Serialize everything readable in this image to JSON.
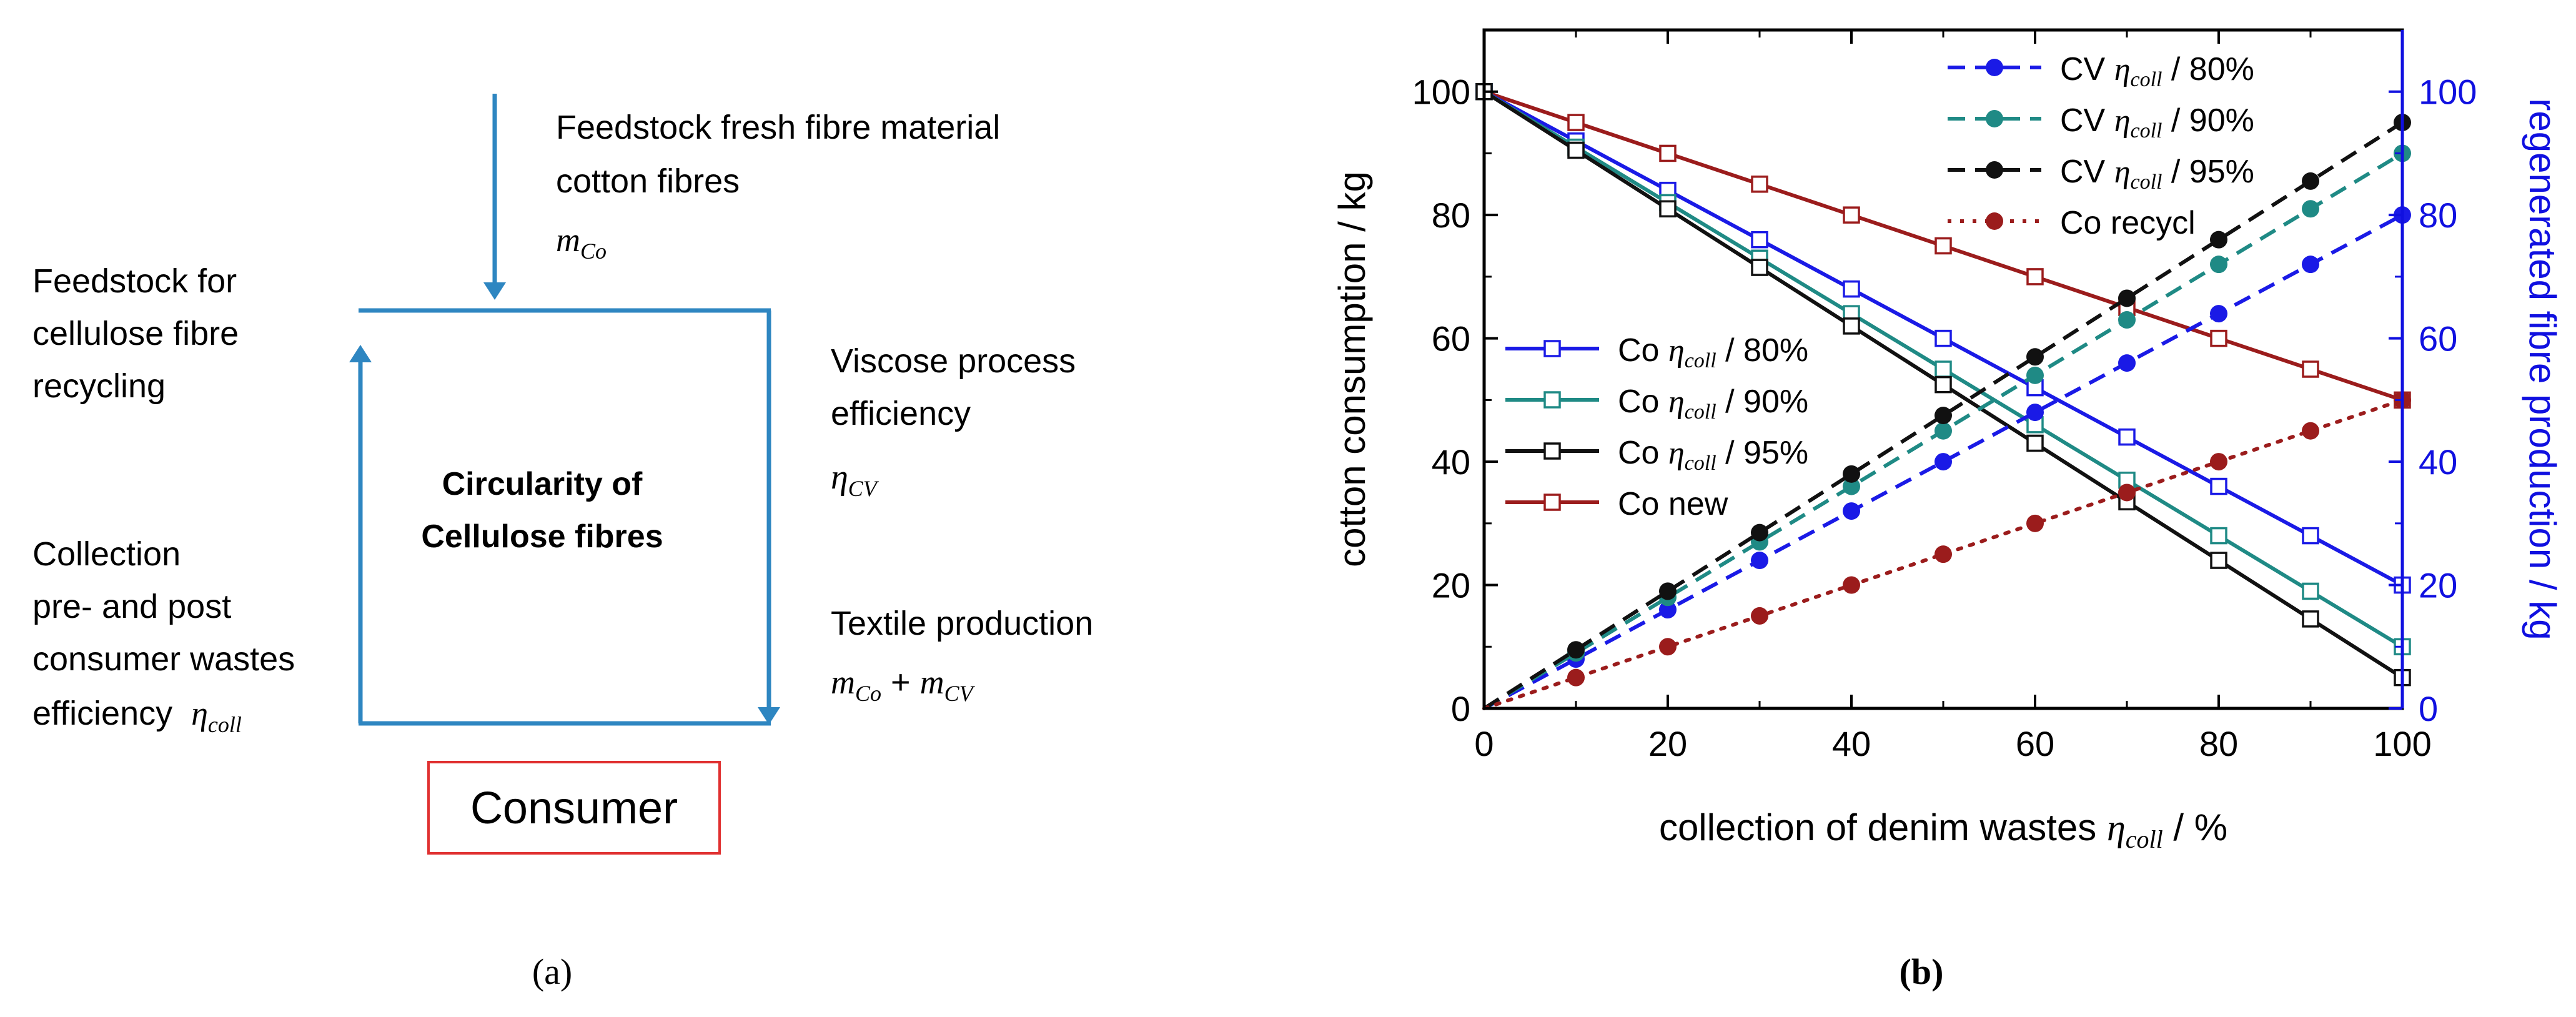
{
  "diagram": {
    "feedstock_fresh": [
      "Feedstock fresh fibre material",
      "cotton fibres"
    ],
    "m_co": {
      "base": "m",
      "sub": "Co"
    },
    "feedstock_recycling": [
      "Feedstock for",
      "cellulose fibre",
      "recycling"
    ],
    "viscose": [
      "Viscose process",
      "efficiency"
    ],
    "eta_cv": {
      "base": "η",
      "sub": "CV"
    },
    "center": [
      "Circularity  of",
      "Cellulose fibres"
    ],
    "collection": [
      "Collection",
      "pre- and post",
      "consumer wastes"
    ],
    "efficiency_word": "efficiency",
    "eta_coll": {
      "base": "η",
      "sub": "coll"
    },
    "textile": "Textile production",
    "m_sum": {
      "a": "m",
      "a_sub": "Co",
      "plus": " + ",
      "b": "m",
      "b_sub": "CV"
    },
    "consumer": "Consumer",
    "panel_label": "(a)",
    "line_color": "#2e86c1",
    "consumer_border": "#e03030"
  },
  "chart": {
    "panel_label": "(b)",
    "xlabel_pre": "collection of denim wastes ",
    "xlabel_eta": "η",
    "xlabel_sub": "coll",
    "xlabel_post": " / %",
    "ylabel_left": "cotton consumption / kg",
    "ylabel_right": "regenerated fibre production / kg",
    "x_ticks": [
      "0",
      "20",
      "40",
      "60",
      "80",
      "100"
    ],
    "y_ticks": [
      "0",
      "20",
      "40",
      "60",
      "80",
      "100"
    ],
    "y2_ticks": [
      "0",
      "20",
      "40",
      "60",
      "80",
      "100"
    ],
    "right_axis_color": "#1010e0",
    "legend_eta": "η",
    "legend_sub": "coll"
  },
  "chart_data": {
    "type": "line",
    "x": [
      0,
      10,
      20,
      30,
      40,
      50,
      60,
      70,
      80,
      90,
      100
    ],
    "xlim": [
      0,
      100
    ],
    "ylim": [
      0,
      110
    ],
    "y2lim": [
      0,
      110
    ],
    "grid": false,
    "series": [
      {
        "name": "Co new",
        "pre": "Co new",
        "post": "",
        "color": "#9b1c1c",
        "marker": "square-open",
        "line": "solid",
        "axis": "left",
        "values": [
          100,
          95,
          90,
          85,
          80,
          75,
          70,
          65,
          60,
          55,
          50
        ]
      },
      {
        "name": "Co ηcoll / 80%",
        "pre": "Co ",
        "post": " / 80%",
        "color": "#1a1ae6",
        "marker": "square-open",
        "line": "solid",
        "axis": "left",
        "values": [
          100,
          92,
          84,
          76,
          68,
          60,
          52,
          44,
          36,
          28,
          20
        ]
      },
      {
        "name": "Co ηcoll / 90%",
        "pre": "Co ",
        "post": " / 90%",
        "color": "#1f8a85",
        "marker": "square-open",
        "line": "solid",
        "axis": "left",
        "values": [
          100,
          91,
          82,
          73,
          64,
          55,
          46,
          37,
          28,
          19,
          10
        ]
      },
      {
        "name": "Co ηcoll / 95%",
        "pre": "Co ",
        "post": " / 95%",
        "color": "#111111",
        "marker": "square-open",
        "line": "solid",
        "axis": "left",
        "values": [
          100,
          90.5,
          81,
          71.5,
          62,
          52.5,
          43,
          33.5,
          24,
          14.5,
          5
        ]
      },
      {
        "name": "CV ηcoll / 80%",
        "pre": "CV ",
        "post": " / 80%",
        "color": "#1a1ae6",
        "marker": "circle-filled",
        "line": "dashed",
        "axis": "right",
        "values": [
          0,
          8,
          16,
          24,
          32,
          40,
          48,
          56,
          64,
          72,
          80
        ]
      },
      {
        "name": "CV ηcoll / 90%",
        "pre": "CV ",
        "post": " / 90%",
        "color": "#1f8a85",
        "marker": "circle-filled",
        "line": "dashed",
        "axis": "right",
        "values": [
          0,
          9,
          18,
          27,
          36,
          45,
          54,
          63,
          72,
          81,
          90
        ]
      },
      {
        "name": "CV ηcoll / 95%",
        "pre": "CV ",
        "post": " / 95%",
        "color": "#111111",
        "marker": "circle-filled",
        "line": "dashed",
        "axis": "right",
        "values": [
          0,
          9.5,
          19,
          28.5,
          38,
          47.5,
          57,
          66.5,
          76,
          85.5,
          95
        ]
      },
      {
        "name": "Co recycl",
        "pre": "Co recycl",
        "post": "",
        "color": "#9b1c1c",
        "marker": "circle-filled",
        "line": "dotted",
        "axis": "right",
        "values": [
          0,
          5,
          10,
          15,
          20,
          25,
          30,
          35,
          40,
          45,
          50
        ]
      }
    ],
    "legend_upper": {
      "placement": "top-right",
      "order": [
        4,
        5,
        6,
        7
      ]
    },
    "legend_lower": {
      "placement": "middle-left",
      "order": [
        1,
        2,
        3,
        0
      ]
    }
  }
}
